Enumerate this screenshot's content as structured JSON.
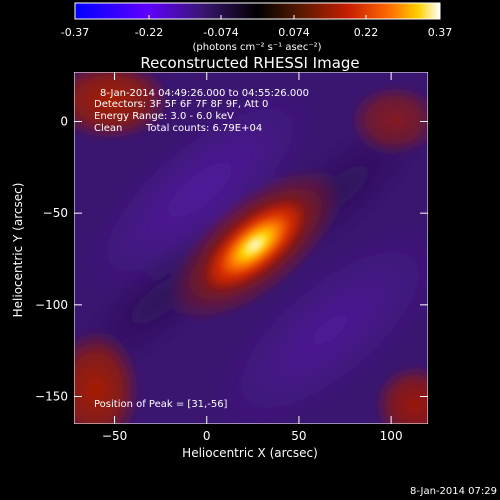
{
  "colorbar": {
    "tick_labels": [
      "-0.37",
      "-0.22",
      "-0.074",
      "0.074",
      "0.22",
      "0.37"
    ],
    "tick_values": [
      -0.37,
      -0.22,
      -0.074,
      0.074,
      0.22,
      0.37
    ],
    "range": [
      -0.37,
      0.37
    ],
    "units_label": "(photons cm⁻² s⁻¹ asec⁻²)",
    "colors": [
      "#0000ff",
      "#6000ff",
      "#3a1670",
      "#000000",
      "#5a1a00",
      "#c81e00",
      "#ff6a00",
      "#ffd000",
      "#ffffff"
    ]
  },
  "annotations": {
    "time_range": "8-Jan-2014 04:49:26.000 to 04:55:26.000",
    "detectors": "Detectors: 3F 5F 6F 7F 8F 9F, Att 0",
    "energy": "Energy Range: 3.0 - 6.0 keV",
    "clean_label": "Clean",
    "total_counts": "Total counts: 6.79E+04",
    "peak_position": "Position of Peak = [31,-56]"
  },
  "timestamp": "8-Jan-2014 07:29",
  "chart_data": {
    "type": "heatmap",
    "title": "Reconstructed RHESSI Image",
    "xlabel": "Heliocentric X (arcsec)",
    "ylabel": "Heliocentric Y (arcsec)",
    "xlim": [
      -72,
      120
    ],
    "ylim": [
      -165,
      27
    ],
    "x_ticks": [
      -50,
      0,
      50,
      100
    ],
    "x_tick_labels": [
      "−50",
      "0",
      "50",
      "100"
    ],
    "y_ticks": [
      0,
      -50,
      -100,
      -150
    ],
    "y_tick_labels": [
      "0",
      "−50",
      "−100",
      "−150"
    ],
    "value_range": [
      -0.37,
      0.37
    ],
    "peak": {
      "x": 31,
      "y": -56,
      "value": 0.37
    },
    "source_orientation_deg": 40,
    "grid": false,
    "background_color": "#3a1670"
  }
}
